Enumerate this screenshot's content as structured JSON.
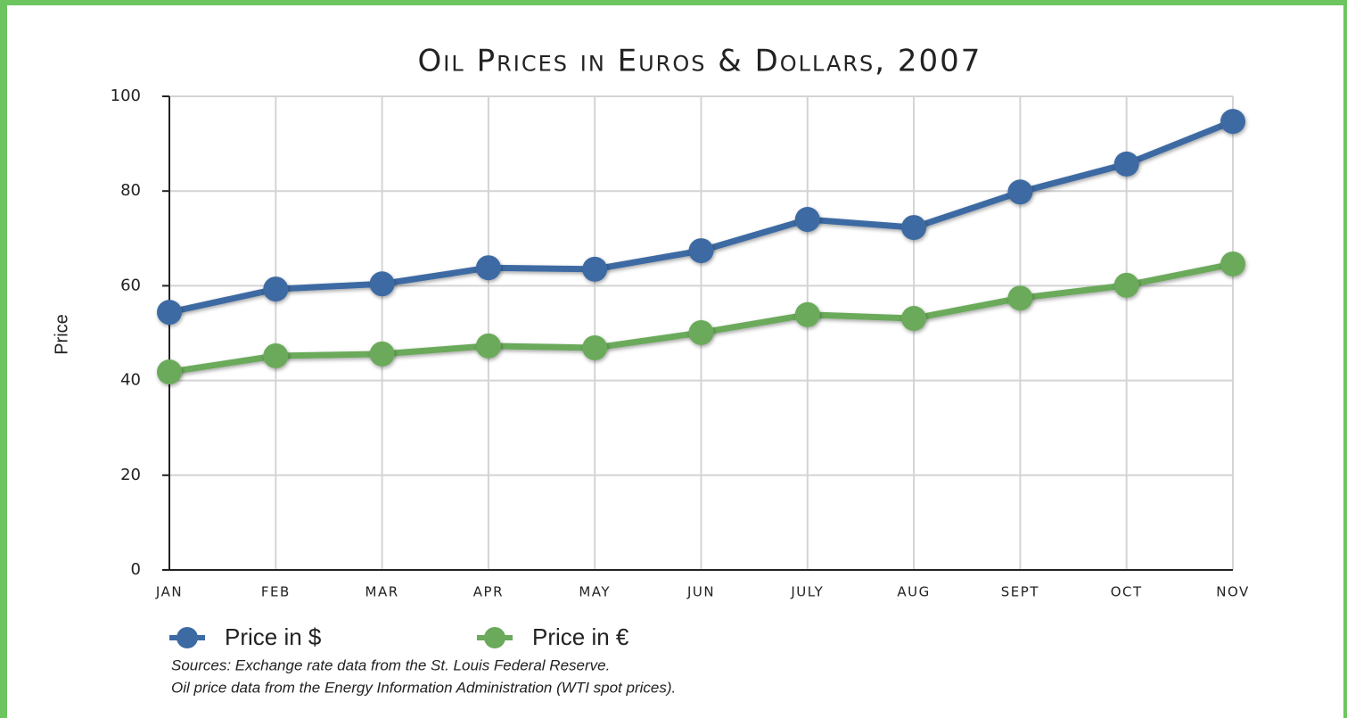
{
  "chart_data": {
    "type": "line",
    "title": "Oil Prices in Euros & Dollars, 2007",
    "y_label": "Price",
    "categories": [
      "JAN",
      "FEB",
      "MAR",
      "APR",
      "MAY",
      "JUN",
      "JULY",
      "AUG",
      "SEPT",
      "OCT",
      "NOV"
    ],
    "series": [
      {
        "name": "Price in $",
        "color": "#3d6aa3",
        "values": [
          54.4,
          59.3,
          60.4,
          63.8,
          63.5,
          67.4,
          74.0,
          72.3,
          79.8,
          85.7,
          94.7
        ]
      },
      {
        "name": "Price in €",
        "color": "#6aaa5a",
        "values": [
          41.8,
          45.2,
          45.6,
          47.3,
          46.9,
          50.1,
          53.9,
          53.1,
          57.4,
          60.1,
          64.6
        ]
      }
    ],
    "ylim": [
      0,
      100
    ],
    "yticks": [
      0,
      20,
      40,
      60,
      80,
      100
    ],
    "grid": true,
    "sources": [
      "Sources: Exchange rate data from the St. Louis Federal Reserve.",
      "Oil price data from the Energy Information Administration (WTI spot prices)."
    ]
  }
}
